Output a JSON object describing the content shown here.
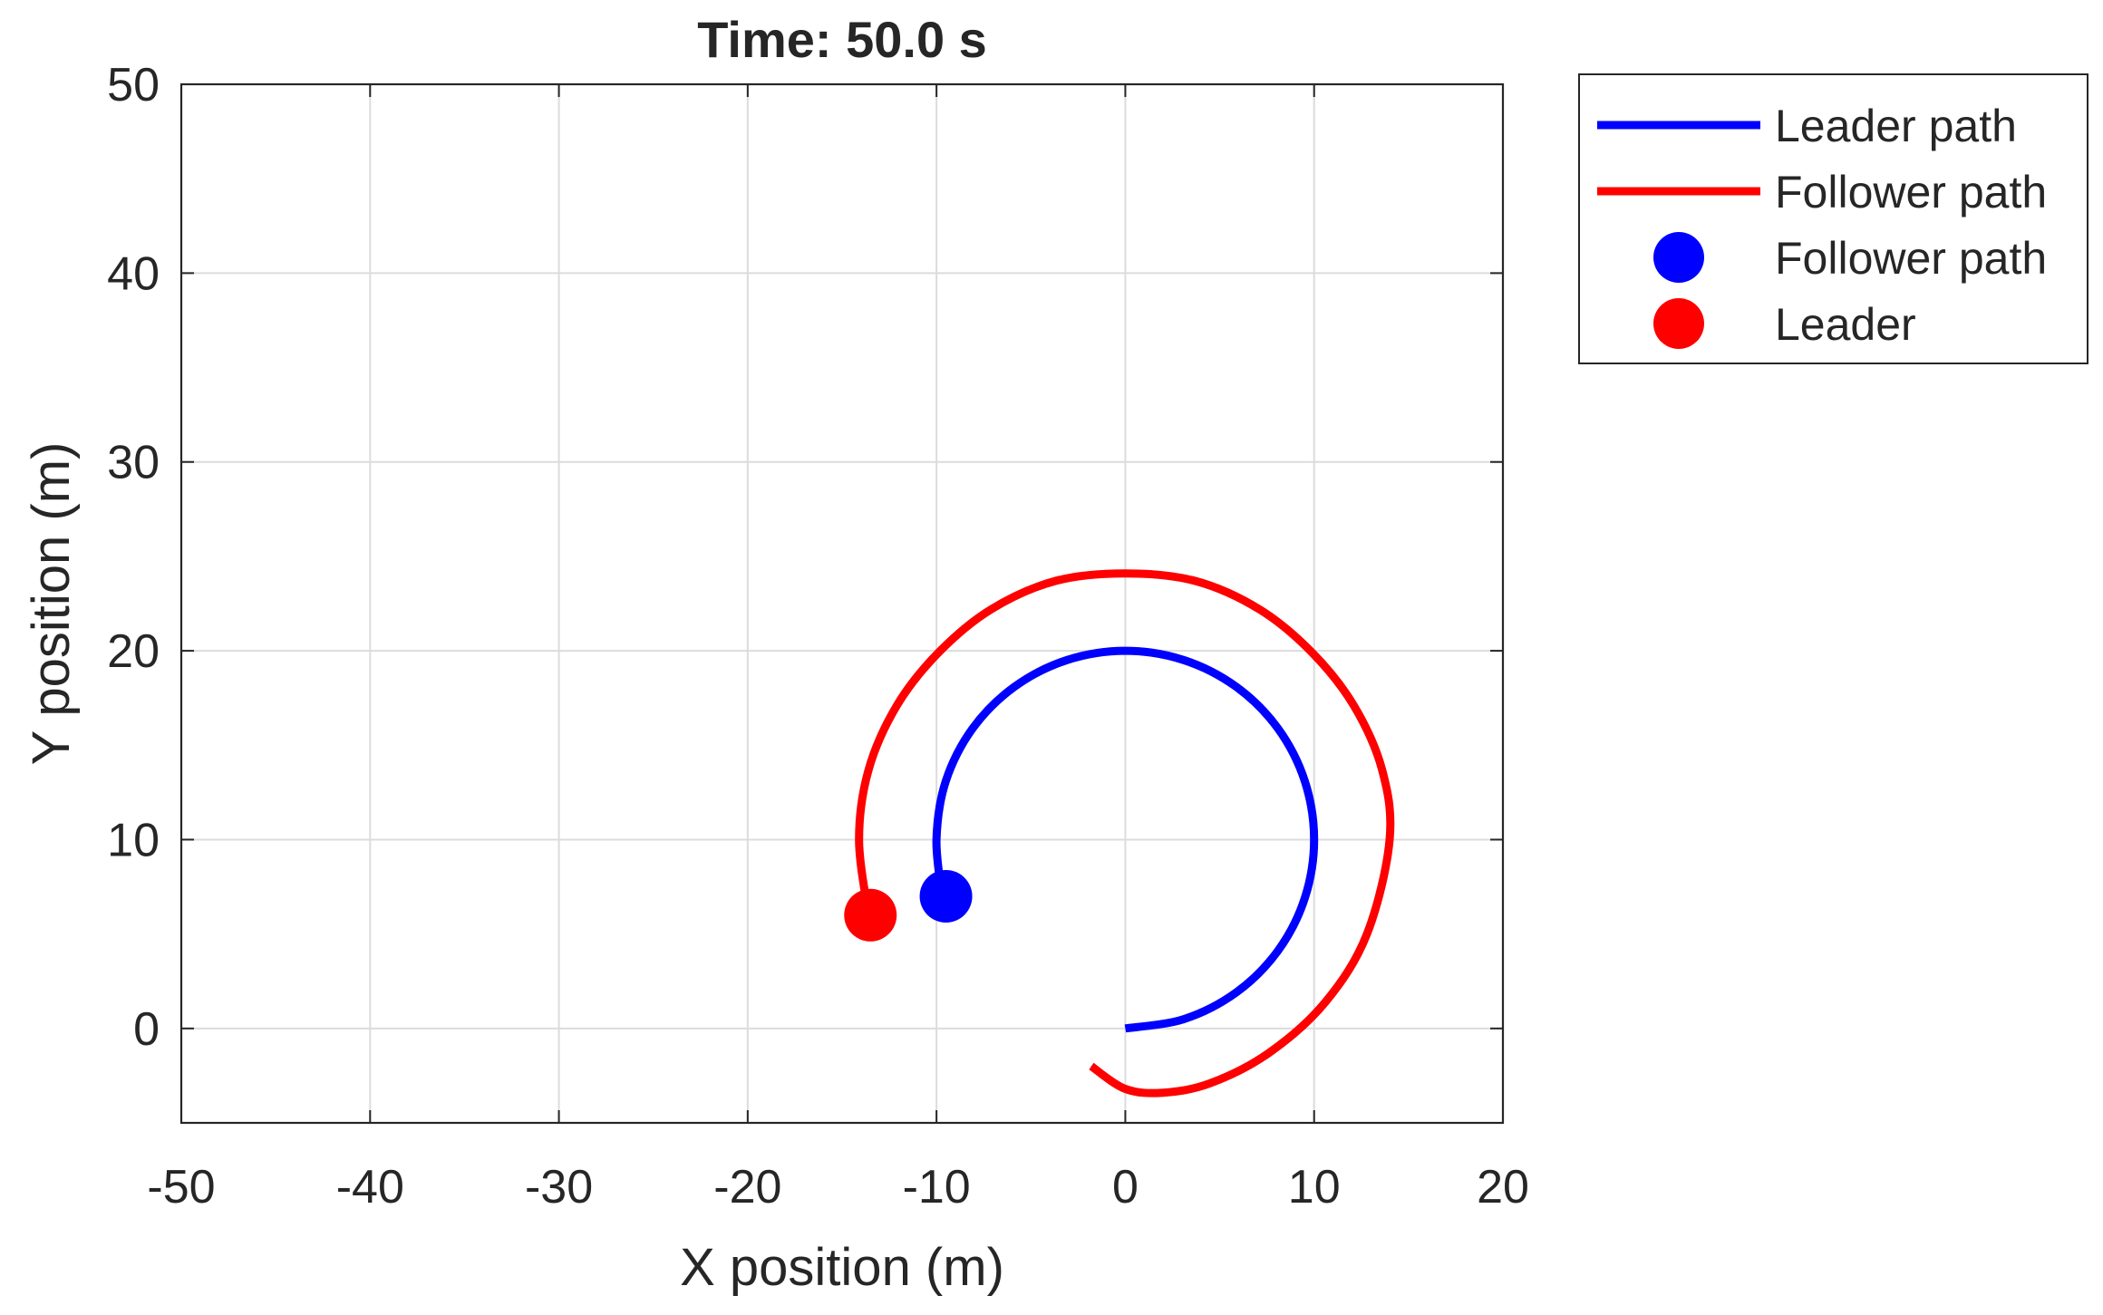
{
  "chart_data": {
    "type": "line",
    "title": "Time: 50.0 s",
    "xlabel": "X position (m)",
    "ylabel": "Y position (m)",
    "xlim": [
      -50,
      20
    ],
    "ylim": [
      -5,
      50
    ],
    "xticks": [
      -50,
      -40,
      -30,
      -20,
      -10,
      0,
      10,
      20
    ],
    "yticks": [
      0,
      10,
      20,
      30,
      40,
      50
    ],
    "grid": true,
    "legend_position": "outside top-right",
    "series": [
      {
        "name": "Leader path",
        "kind": "line",
        "color": "#0000ff",
        "points": [
          [
            0,
            0
          ],
          [
            3.09,
            0.49
          ],
          [
            5.88,
            1.91
          ],
          [
            8.09,
            4.12
          ],
          [
            9.51,
            6.91
          ],
          [
            10,
            10
          ],
          [
            9.51,
            13.09
          ],
          [
            8.09,
            15.88
          ],
          [
            5.88,
            18.09
          ],
          [
            3.09,
            19.51
          ],
          [
            0,
            20
          ],
          [
            -3.09,
            19.51
          ],
          [
            -5.88,
            18.09
          ],
          [
            -8.09,
            15.88
          ],
          [
            -9.51,
            13.09
          ],
          [
            -10,
            10
          ],
          [
            -9.7,
            7
          ]
        ]
      },
      {
        "name": "Follower path",
        "kind": "line",
        "color": "#ff0000",
        "points": [
          [
            -1.8,
            -2
          ],
          [
            0,
            -3.2
          ],
          [
            2,
            -3.4
          ],
          [
            4.5,
            -2.9
          ],
          [
            7.6,
            -1.3
          ],
          [
            10.6,
            1.4
          ],
          [
            12.8,
            5
          ],
          [
            14,
            10
          ],
          [
            13.6,
            13.7
          ],
          [
            12.1,
            17.1
          ],
          [
            9.9,
            19.9
          ],
          [
            7.1,
            22.2
          ],
          [
            3.7,
            23.7
          ],
          [
            0,
            24.1
          ],
          [
            -3.7,
            23.7
          ],
          [
            -7.1,
            22.2
          ],
          [
            -9.9,
            19.9
          ],
          [
            -12.1,
            17.1
          ],
          [
            -13.6,
            13.7
          ],
          [
            -14.1,
            10
          ],
          [
            -13.6,
            6
          ]
        ]
      },
      {
        "name": "Follower path",
        "kind": "marker",
        "color": "#0000ff",
        "points": [
          [
            -9.5,
            7
          ]
        ]
      },
      {
        "name": "Leader",
        "kind": "marker",
        "color": "#ff0000",
        "points": [
          [
            -13.5,
            6
          ]
        ]
      }
    ]
  }
}
